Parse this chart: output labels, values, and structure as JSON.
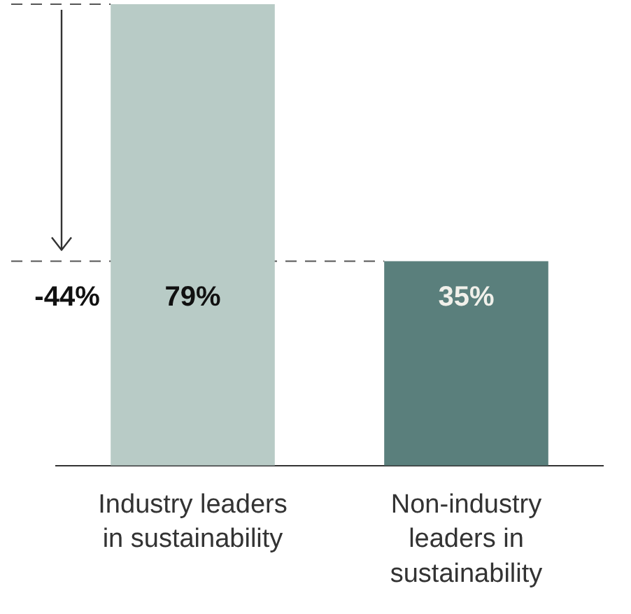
{
  "chart_data": {
    "type": "bar",
    "categories": [
      "Industry leaders in sustainability",
      "Non-industry leaders in sustainability"
    ],
    "values": [
      79,
      35
    ],
    "value_labels": [
      "79%",
      "35%"
    ],
    "colors": [
      "#b8cbc6",
      "#5a7f7c"
    ],
    "ref_lines": [
      {
        "axis": "y",
        "value": 79,
        "line_style": "dashed",
        "color": "#555555"
      },
      {
        "axis": "y",
        "value": 35,
        "line_style": "dashed",
        "color": "#555555"
      }
    ],
    "annotations": [
      "-44%"
    ],
    "grid": false,
    "legend": false,
    "tick_labels": "x"
  }
}
